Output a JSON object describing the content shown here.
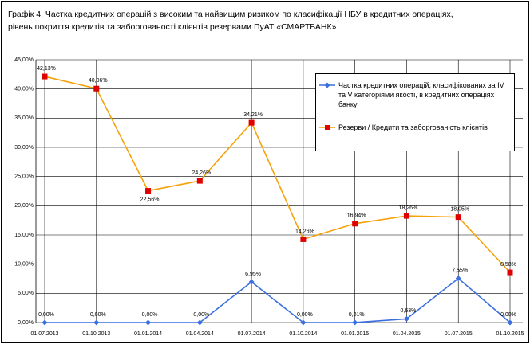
{
  "chart_data": {
    "type": "line",
    "title": "Графік 4. Частка кредитних операцій з високим та найвищим ризиком по класифікації НБУ в кредитних операціях, рівень покриття кредитів та заборгованості клієнтів резервами ПуАТ «СМАРТБАНК»",
    "categories": [
      "01.07.2013",
      "01.10.2013",
      "01.01.2014",
      "01.04.2014",
      "01.07.2014",
      "01.10.2014",
      "01.01.2015",
      "01.04.2015",
      "01.07.2015",
      "01.10.2015"
    ],
    "series": [
      {
        "name": "Частка кредитних операцій, класифікованих за  IV та V категоріями якості, в кредитних операціях банку",
        "color": "#3a6fe0",
        "marker": "diamond",
        "values": [
          0,
          0,
          0,
          0,
          6.95,
          0,
          0.01,
          0.63,
          7.55,
          0
        ],
        "value_labels": [
          "0,00%",
          "0,00%",
          "0,00%",
          "0,00%",
          "6,95%",
          "0,00%",
          "0,01%",
          "0,63%",
          "7,55%",
          "0,00%"
        ]
      },
      {
        "name": "Резерви / Кредити та заборгованість клієнтів",
        "color": "#f5a20a",
        "marker": "square",
        "values": [
          42.13,
          40.06,
          22.56,
          24.26,
          34.21,
          14.26,
          16.94,
          18.26,
          18.05,
          8.58
        ],
        "value_labels": [
          "42,13%",
          "40,06%",
          "22,56%",
          "24,26%",
          "34,21%",
          "14,26%",
          "16,94%",
          "18,26%",
          "18,05%",
          "8,58%"
        ]
      }
    ],
    "ylim": [
      0,
      45
    ],
    "yticks": [
      {
        "value": 0,
        "label": "0,00%"
      },
      {
        "value": 5,
        "label": "5,00%"
      },
      {
        "value": 10,
        "label": "10,00%"
      },
      {
        "value": 15,
        "label": "15,00%"
      },
      {
        "value": 20,
        "label": "20,00%"
      },
      {
        "value": 25,
        "label": "25,00%"
      },
      {
        "value": 30,
        "label": "30,00%"
      },
      {
        "value": 35,
        "label": "35,00%"
      },
      {
        "value": 40,
        "label": "40,00%"
      },
      {
        "value": 45,
        "label": "45,00%"
      }
    ],
    "grid": true,
    "legend": "upper right"
  }
}
